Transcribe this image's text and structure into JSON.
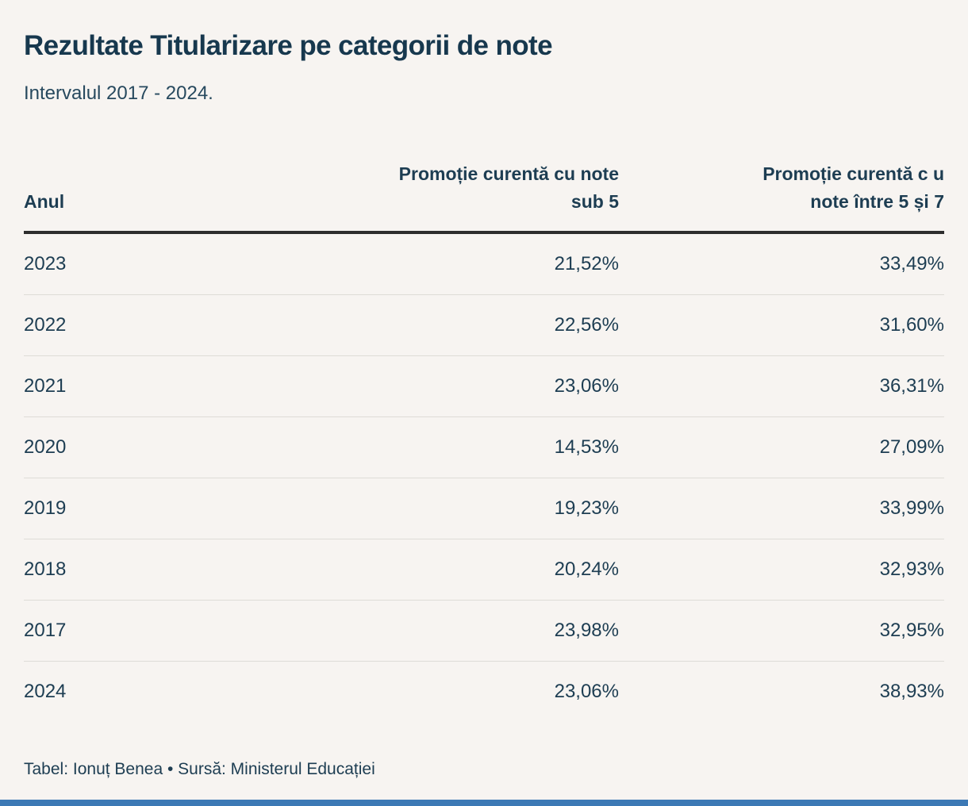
{
  "page": {
    "title": "Rezultate Titularizare pe categorii de note",
    "subtitle": "Intervalul 2017 - 2024.",
    "credit": "Tabel: Ionuț Benea • Sursă: Ministerul Educației"
  },
  "table": {
    "columns": {
      "year": {
        "label": "Anul"
      },
      "sub5": {
        "label_line1": "Promoție curentă cu note",
        "label_line2": "sub 5"
      },
      "between": {
        "label_line1": "Promoție curentă c u",
        "label_line2": "note între 5 și 7"
      }
    },
    "rows": [
      {
        "year": "2023",
        "sub5": "21,52%",
        "between": "33,49%"
      },
      {
        "year": "2022",
        "sub5": "22,56%",
        "between": "31,60%"
      },
      {
        "year": "2021",
        "sub5": "23,06%",
        "between": "36,31%"
      },
      {
        "year": "2020",
        "sub5": "14,53%",
        "between": "27,09%"
      },
      {
        "year": "2019",
        "sub5": "19,23%",
        "between": "33,99%"
      },
      {
        "year": "2018",
        "sub5": "20,24%",
        "between": "32,93%"
      },
      {
        "year": "2017",
        "sub5": "23,98%",
        "between": "32,95%"
      },
      {
        "year": "2024",
        "sub5": "23,06%",
        "between": "38,93%"
      }
    ]
  },
  "colors": {
    "background": "#f7f4f1",
    "text": "#1d3d52",
    "title": "#17384e",
    "header_rule": "#2d2d2d",
    "row_divider": "#dedcd7",
    "bottom_bar": "#3c79b5"
  },
  "chart_data": {
    "type": "table",
    "title": "Rezultate Titularizare pe categorii de note",
    "subtitle": "Intervalul 2017 - 2024.",
    "columns": [
      "Anul",
      "Promoție curentă cu note sub 5",
      "Promoție curentă c u note între 5 și 7"
    ],
    "rows": [
      [
        "2023",
        "21,52%",
        "33,49%"
      ],
      [
        "2022",
        "22,56%",
        "31,60%"
      ],
      [
        "2021",
        "23,06%",
        "36,31%"
      ],
      [
        "2020",
        "14,53%",
        "27,09%"
      ],
      [
        "2019",
        "19,23%",
        "33,99%"
      ],
      [
        "2018",
        "20,24%",
        "32,93%"
      ],
      [
        "2017",
        "23,98%",
        "32,95%"
      ],
      [
        "2024",
        "23,06%",
        "38,93%"
      ]
    ],
    "values_numeric": {
      "note_sub_5_pct": [
        21.52,
        22.56,
        23.06,
        14.53,
        19.23,
        20.24,
        23.98,
        23.06
      ],
      "note_intre_5_si_7_pct": [
        33.49,
        31.6,
        36.31,
        27.09,
        33.99,
        32.93,
        32.95,
        38.93
      ]
    },
    "credit": "Tabel: Ionuț Benea • Sursă: Ministerul Educației"
  }
}
